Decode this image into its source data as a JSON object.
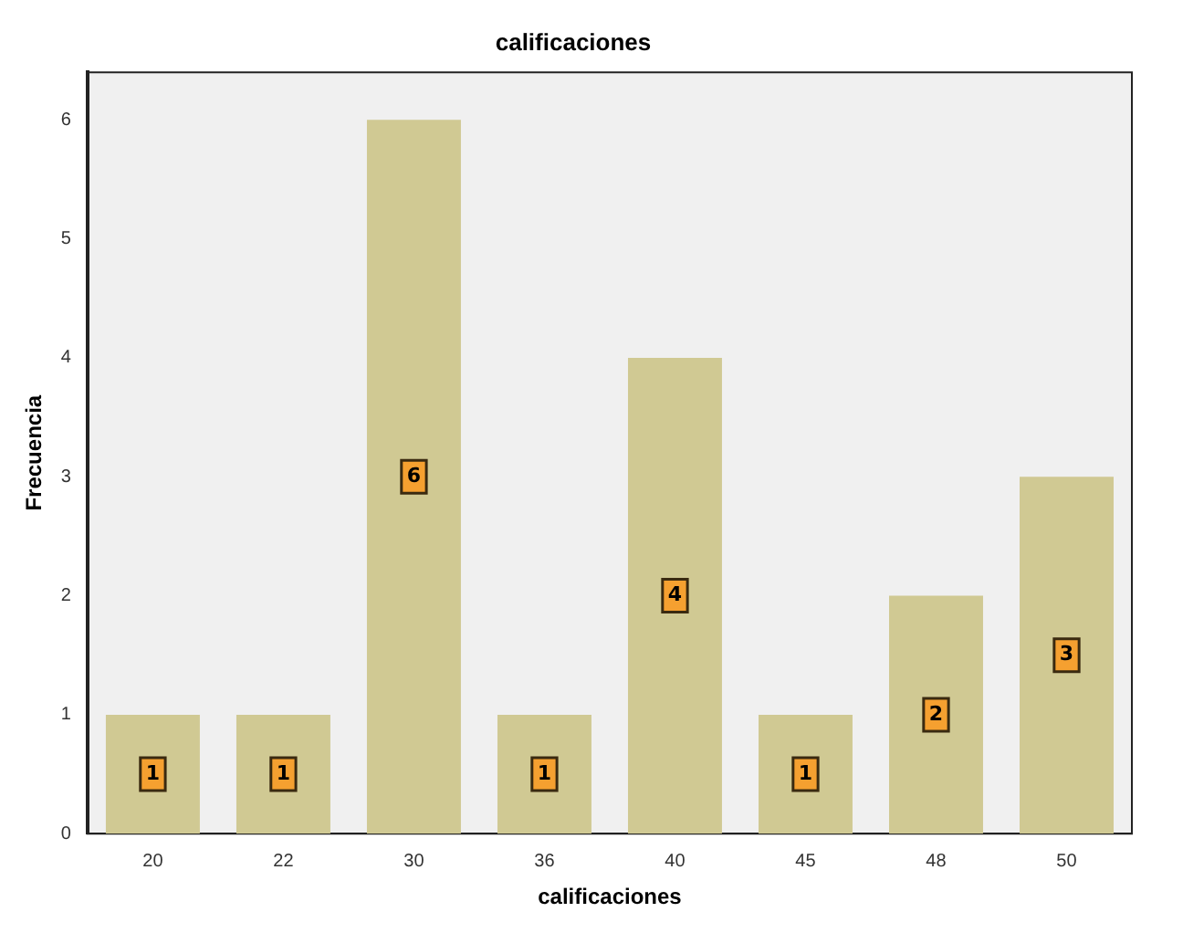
{
  "chart_data": {
    "type": "bar",
    "title": "calificaciones",
    "xlabel": "calificaciones",
    "ylabel": "Frecuencia",
    "categories": [
      "20",
      "22",
      "30",
      "36",
      "40",
      "45",
      "48",
      "50"
    ],
    "values": [
      1,
      1,
      6,
      1,
      4,
      1,
      2,
      3
    ],
    "color": "#d0c993",
    "ylim": [
      0,
      6.4
    ],
    "yticks": [
      0,
      1,
      2,
      3,
      4,
      5,
      6
    ],
    "grid": false,
    "legend": false,
    "data_labels": true
  }
}
